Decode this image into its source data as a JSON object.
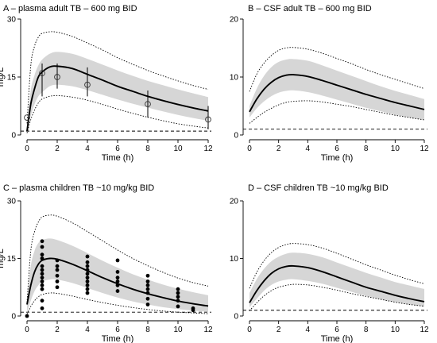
{
  "chart_data": [
    {
      "type": "line",
      "title": "A – plasma adult TB – 600 mg BID",
      "xlabel": "Time (h)",
      "ylabel": "mg/L",
      "xlim": [
        0,
        12
      ],
      "ylim": [
        0,
        30
      ],
      "x_ticks": [
        0,
        2,
        4,
        6,
        8,
        10,
        12
      ],
      "y_ticks": [
        0,
        15,
        30
      ],
      "reference_line_y": 1,
      "x": [
        0,
        0.25,
        0.5,
        0.75,
        1,
        1.5,
        2,
        3,
        4,
        5,
        6,
        7,
        8,
        9,
        10,
        11,
        12
      ],
      "series": [
        {
          "style": "median-solid",
          "values": [
            1.0,
            8.0,
            12.0,
            15.0,
            16.3,
            17.6,
            17.8,
            17.2,
            15.7,
            14.2,
            12.6,
            11.3,
            10.0,
            8.9,
            7.9,
            7.0,
            6.2
          ]
        },
        {
          "style": "ci-band-lower",
          "values": [
            0.8,
            5.0,
            8.0,
            10.0,
            11.0,
            12.6,
            13.0,
            12.6,
            11.6,
            10.4,
            9.2,
            8.1,
            7.1,
            6.1,
            5.2,
            4.4,
            3.7
          ]
        },
        {
          "style": "ci-band-upper",
          "values": [
            1.8,
            11.5,
            15.5,
            18.0,
            19.5,
            21.0,
            21.5,
            21.0,
            19.7,
            18.2,
            16.7,
            15.3,
            14.0,
            12.9,
            11.8,
            10.8,
            9.8
          ]
        },
        {
          "style": "pi-dotted-upper",
          "values": [
            3.0,
            18.0,
            23.0,
            25.3,
            26.3,
            26.7,
            26.6,
            25.5,
            23.8,
            22.0,
            20.0,
            18.3,
            16.7,
            15.3,
            14.0,
            12.8,
            11.8
          ]
        },
        {
          "style": "pi-dotted-lower",
          "values": [
            0.5,
            4.0,
            6.5,
            8.3,
            9.3,
            10.0,
            10.2,
            9.8,
            9.0,
            7.9,
            6.7,
            5.6,
            4.6,
            3.7,
            2.9,
            2.3,
            1.8
          ]
        }
      ],
      "observed_mean_sd": [
        {
          "x": 0,
          "y": 4.5,
          "lo": 4.5,
          "hi": 4.5
        },
        {
          "x": 1,
          "y": 16.0,
          "lo": 10.0,
          "hi": 18.5
        },
        {
          "x": 2,
          "y": 15.0,
          "lo": 12.0,
          "hi": 18.5
        },
        {
          "x": 4,
          "y": 13.0,
          "lo": 10.0,
          "hi": 17.5
        },
        {
          "x": 8,
          "y": 8.0,
          "lo": 4.5,
          "hi": 11.5
        },
        {
          "x": 12,
          "y": 4.0,
          "lo": 1.5,
          "hi": 7.5
        }
      ]
    },
    {
      "type": "line",
      "title": "B – CSF adult TB – 600 mg BID",
      "xlabel": "Time (h)",
      "ylabel": "",
      "xlim": [
        0,
        12
      ],
      "ylim": [
        0,
        20
      ],
      "x_ticks": [
        0,
        2,
        4,
        6,
        8,
        10,
        12
      ],
      "y_ticks": [
        0,
        10,
        20
      ],
      "reference_line_y": 1,
      "x": [
        0,
        0.5,
        1,
        1.5,
        2,
        2.5,
        3,
        4,
        5,
        6,
        7,
        8,
        9,
        10,
        11,
        12
      ],
      "series": [
        {
          "style": "median-solid",
          "values": [
            4.0,
            6.2,
            7.9,
            9.1,
            9.9,
            10.3,
            10.4,
            10.1,
            9.4,
            8.6,
            7.8,
            7.0,
            6.3,
            5.6,
            5.0,
            4.4
          ]
        },
        {
          "style": "ci-band-lower",
          "values": [
            3.0,
            4.6,
            5.8,
            6.7,
            7.3,
            7.6,
            7.7,
            7.4,
            6.8,
            6.1,
            5.4,
            4.7,
            4.1,
            3.5,
            3.0,
            2.6
          ]
        },
        {
          "style": "ci-band-upper",
          "values": [
            5.0,
            8.0,
            10.2,
            11.7,
            12.6,
            13.0,
            13.1,
            12.8,
            12.0,
            11.1,
            10.2,
            9.3,
            8.4,
            7.6,
            6.9,
            6.2
          ]
        },
        {
          "style": "pi-dotted-upper",
          "values": [
            7.5,
            10.5,
            12.4,
            13.7,
            14.6,
            15.0,
            15.1,
            14.8,
            14.1,
            13.2,
            12.3,
            11.3,
            10.4,
            9.6,
            8.8,
            8.0
          ]
        },
        {
          "style": "pi-dotted-lower",
          "values": [
            2.0,
            3.0,
            3.9,
            4.6,
            5.2,
            5.6,
            5.8,
            5.9,
            5.7,
            5.3,
            4.9,
            4.4,
            3.9,
            3.4,
            3.0,
            2.6
          ]
        }
      ]
    },
    {
      "type": "line",
      "title": "C – plasma children TB ~10 mg/kg BID",
      "xlabel": "Time (h)",
      "ylabel": "mg/L",
      "xlim": [
        0,
        12
      ],
      "ylim": [
        0,
        30
      ],
      "x_ticks": [
        0,
        2,
        4,
        6,
        8,
        10,
        12
      ],
      "y_ticks": [
        0,
        15,
        30
      ],
      "reference_line_y": 1,
      "x": [
        0,
        0.25,
        0.5,
        0.75,
        1,
        1.5,
        2,
        3,
        4,
        5,
        6,
        7,
        8,
        9,
        10,
        11,
        12
      ],
      "series": [
        {
          "style": "median-solid",
          "values": [
            3.0,
            8.0,
            11.5,
            13.5,
            14.5,
            15.0,
            14.8,
            13.5,
            11.8,
            10.0,
            8.4,
            7.0,
            5.8,
            4.8,
            3.9,
            3.2,
            2.6
          ]
        },
        {
          "style": "ci-band-lower",
          "values": [
            1.0,
            4.0,
            6.5,
            8.0,
            9.0,
            9.5,
            9.5,
            8.6,
            7.3,
            6.0,
            4.8,
            3.8,
            3.0,
            2.3,
            1.8,
            1.4,
            1.1
          ]
        },
        {
          "style": "ci-band-upper",
          "values": [
            4.0,
            13.0,
            17.0,
            19.0,
            19.8,
            20.2,
            19.8,
            18.3,
            16.4,
            14.4,
            12.6,
            10.9,
            9.5,
            8.2,
            7.1,
            6.2,
            5.4
          ]
        },
        {
          "style": "pi-dotted-upper",
          "values": [
            3.5,
            17.0,
            22.0,
            24.5,
            25.8,
            26.3,
            26.0,
            24.3,
            22.0,
            19.6,
            17.2,
            15.0,
            13.1,
            11.4,
            9.9,
            8.7,
            7.8
          ]
        },
        {
          "style": "pi-dotted-lower",
          "values": [
            0.5,
            2.5,
            4.0,
            5.0,
            5.6,
            6.0,
            5.9,
            5.2,
            4.3,
            3.5,
            2.8,
            2.2,
            1.7,
            1.3,
            1.0,
            0.8,
            0.6
          ]
        }
      ],
      "observed_points": [
        {
          "x": 0,
          "y": 0
        },
        {
          "x": 1,
          "y": 2
        },
        {
          "x": 1,
          "y": 4
        },
        {
          "x": 1,
          "y": 7
        },
        {
          "x": 1,
          "y": 8
        },
        {
          "x": 1,
          "y": 9
        },
        {
          "x": 1,
          "y": 10
        },
        {
          "x": 1,
          "y": 11
        },
        {
          "x": 1,
          "y": 12
        },
        {
          "x": 1,
          "y": 13
        },
        {
          "x": 1,
          "y": 15
        },
        {
          "x": 1,
          "y": 16
        },
        {
          "x": 1,
          "y": 18
        },
        {
          "x": 1,
          "y": 19.5
        },
        {
          "x": 2,
          "y": 7.5
        },
        {
          "x": 2,
          "y": 9
        },
        {
          "x": 2,
          "y": 10.5
        },
        {
          "x": 2,
          "y": 12
        },
        {
          "x": 2,
          "y": 13
        },
        {
          "x": 2,
          "y": 14.5
        },
        {
          "x": 4,
          "y": 6
        },
        {
          "x": 4,
          "y": 7
        },
        {
          "x": 4,
          "y": 8
        },
        {
          "x": 4,
          "y": 9
        },
        {
          "x": 4,
          "y": 10
        },
        {
          "x": 4,
          "y": 11
        },
        {
          "x": 4,
          "y": 12
        },
        {
          "x": 4,
          "y": 13
        },
        {
          "x": 4,
          "y": 14
        },
        {
          "x": 4,
          "y": 15.5
        },
        {
          "x": 6,
          "y": 6.5
        },
        {
          "x": 6,
          "y": 8
        },
        {
          "x": 6,
          "y": 9
        },
        {
          "x": 6,
          "y": 10
        },
        {
          "x": 6,
          "y": 11.5
        },
        {
          "x": 6,
          "y": 14.5
        },
        {
          "x": 8,
          "y": 3
        },
        {
          "x": 8,
          "y": 4.5
        },
        {
          "x": 8,
          "y": 6
        },
        {
          "x": 8,
          "y": 7
        },
        {
          "x": 8,
          "y": 8
        },
        {
          "x": 8,
          "y": 9
        },
        {
          "x": 8,
          "y": 10.5
        },
        {
          "x": 10,
          "y": 2.5
        },
        {
          "x": 10,
          "y": 4
        },
        {
          "x": 10,
          "y": 5
        },
        {
          "x": 10,
          "y": 6
        },
        {
          "x": 10,
          "y": 7
        },
        {
          "x": 11,
          "y": 1.5
        },
        {
          "x": 11,
          "y": 2
        }
      ]
    },
    {
      "type": "line",
      "title": "D – CSF children TB ~10 mg/kg BID",
      "xlabel": "Time (h)",
      "ylabel": "",
      "xlim": [
        0,
        12
      ],
      "ylim": [
        0,
        20
      ],
      "x_ticks": [
        0,
        2,
        4,
        6,
        8,
        10,
        12
      ],
      "y_ticks": [
        0,
        10,
        20
      ],
      "reference_line_y": 1,
      "x": [
        0,
        0.5,
        1,
        1.5,
        2,
        2.5,
        3,
        4,
        5,
        6,
        7,
        8,
        9,
        10,
        11,
        12
      ],
      "series": [
        {
          "style": "median-solid",
          "values": [
            2.3,
            4.4,
            6.1,
            7.4,
            8.2,
            8.6,
            8.7,
            8.4,
            7.7,
            6.8,
            5.9,
            5.0,
            4.3,
            3.6,
            3.0,
            2.5
          ]
        },
        {
          "style": "ci-band-lower",
          "values": [
            1.5,
            3.0,
            4.4,
            5.4,
            6.0,
            6.3,
            6.4,
            6.1,
            5.6,
            4.9,
            4.2,
            3.5,
            2.9,
            2.4,
            2.0,
            1.6
          ]
        },
        {
          "style": "ci-band-upper",
          "values": [
            4.0,
            6.4,
            8.2,
            9.5,
            10.3,
            10.8,
            11.0,
            10.8,
            10.2,
            9.3,
            8.4,
            7.5,
            6.7,
            5.9,
            5.3,
            4.7
          ]
        },
        {
          "style": "pi-dotted-upper",
          "values": [
            4.8,
            7.6,
            9.6,
            11.0,
            11.9,
            12.4,
            12.6,
            12.4,
            11.8,
            10.9,
            9.9,
            8.9,
            8.0,
            7.1,
            6.3,
            5.6
          ]
        },
        {
          "style": "pi-dotted-lower",
          "values": [
            0.9,
            2.3,
            3.5,
            4.4,
            5.0,
            5.3,
            5.5,
            5.4,
            5.0,
            4.5,
            3.9,
            3.4,
            2.9,
            2.4,
            2.0,
            1.7
          ]
        }
      ]
    }
  ]
}
